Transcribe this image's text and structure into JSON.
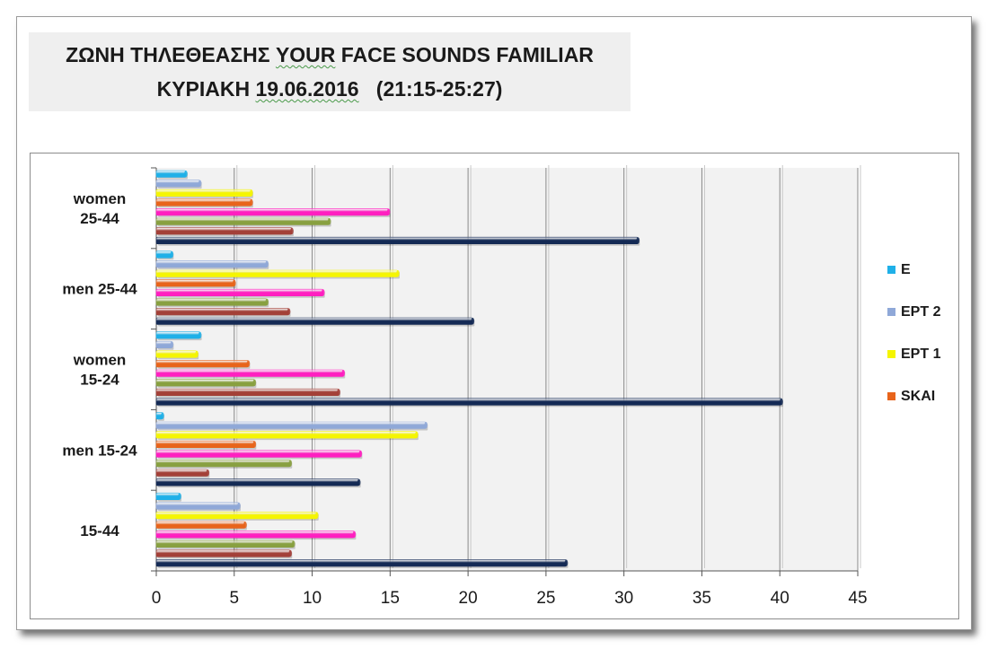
{
  "title": {
    "line1_prefix": "ΖΩΝΗ ΤΗΛΕΘΕΑΣΗΣ ",
    "line1_underlined": "YOUR",
    "line1_suffix": " FACE SOUNDS FAMILIAR",
    "line2_prefix": "ΚΥΡΙΑΚΗ ",
    "line2_underlined": "19.06.2016",
    "line2_suffix": "   (21:15-25:27)"
  },
  "chart_data": {
    "type": "bar",
    "orientation": "horizontal",
    "categories": [
      "women\n25-44",
      "men 25-44",
      "women\n15-24",
      "men 15-24",
      "15-44"
    ],
    "series": [
      {
        "name": "E",
        "color": "#1fb0e8",
        "values": [
          1.9,
          1.0,
          2.8,
          0.4,
          1.5
        ]
      },
      {
        "name": "ΕΡΤ 2",
        "color": "#8fa8d8",
        "values": [
          2.8,
          7.1,
          1.0,
          17.3,
          5.3
        ]
      },
      {
        "name": "ΕΡΤ 1",
        "color": "#f5f500",
        "values": [
          6.1,
          15.5,
          2.6,
          16.7,
          10.3
        ]
      },
      {
        "name": "SKAI",
        "color": "#e8641b",
        "values": [
          6.1,
          5.0,
          5.9,
          6.3,
          5.7
        ]
      },
      {
        "name": "",
        "color": "#ff1fc0",
        "values": [
          14.9,
          10.7,
          12.0,
          13.1,
          12.7
        ]
      },
      {
        "name": "",
        "color": "#88a040",
        "values": [
          11.1,
          7.1,
          6.3,
          8.6,
          8.8
        ]
      },
      {
        "name": "",
        "color": "#a34038",
        "values": [
          8.7,
          8.5,
          11.7,
          3.3,
          8.6
        ]
      },
      {
        "name": "",
        "color": "#142a55",
        "values": [
          30.9,
          20.3,
          40.1,
          13.0,
          26.3
        ]
      }
    ],
    "xlim": [
      0,
      45
    ],
    "xticks": [
      "0",
      "5",
      "10",
      "15",
      "20",
      "25",
      "30",
      "35",
      "40",
      "45"
    ],
    "grid": true,
    "legend_position": "right",
    "legend_entries": [
      "E",
      "ΕΡΤ 2",
      "ΕΡΤ 1",
      "SKAI"
    ]
  }
}
